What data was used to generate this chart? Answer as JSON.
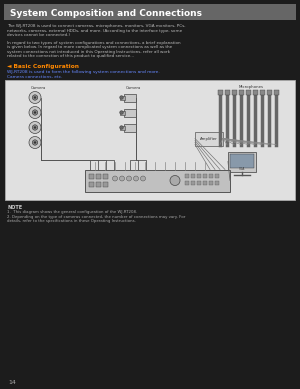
{
  "bg_color": "#1c1c1c",
  "header_bg": "#666666",
  "header_text": "System Composition and Connections",
  "header_text_color": "#ffffff",
  "header_fontsize": 6.5,
  "body_text_color": "#bbbbbb",
  "body_fontsize": 3.0,
  "diagram_bg": "#e0e0e0",
  "diagram_border": "#aaaaaa",
  "para1": "The WJ-RT208 is used to connect cameras, microphones, monitors, VGA monitors, PCs, networks, cameras, external HDDs, and more. (According to the interface type, some devices cannot be connected.)",
  "para2": "In regard to two types of system configurations and connections, a brief explanation is given below. In regard to more complicated system connections as well as the system connections not introduced in this Operating Instructions, refer all work related to the connection of this product to qualified service...",
  "section_heading": "◄ Basic Configuration",
  "section_heading_color": "#ff8800",
  "section_sub1": "WJ-RT208 is used to form the following system connections and more.",
  "section_sub1_color": "#6688ff",
  "section_sub2": "Camera connections, etc.",
  "section_sub2_color": "#6688ff",
  "note_title": "NOTE",
  "note1": "1.  This diagram shows the general configuration of the WJ-RT208.",
  "note2": "2.  Depending on the type of cameras connected, the number of connections may vary. For details, refer to the specifications in these Operating Instructions.",
  "page_num": "14",
  "cam_label1": "Camera",
  "cam_label2": "Camera",
  "mic_label": "Microphones",
  "amp_label": "Amplifier"
}
